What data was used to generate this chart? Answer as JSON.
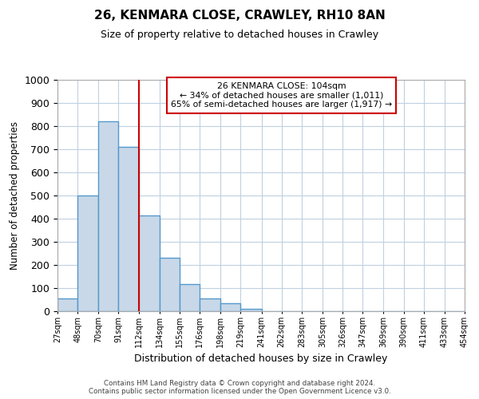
{
  "title": "26, KENMARA CLOSE, CRAWLEY, RH10 8AN",
  "subtitle": "Size of property relative to detached houses in Crawley",
  "xlabel": "Distribution of detached houses by size in Crawley",
  "ylabel": "Number of detached properties",
  "bin_edges": [
    27,
    48,
    70,
    91,
    112,
    134,
    155,
    176,
    198,
    219,
    241,
    262,
    283,
    305,
    326,
    347,
    369,
    390,
    411,
    433,
    454
  ],
  "bin_counts": [
    55,
    500,
    820,
    710,
    415,
    230,
    118,
    55,
    35,
    12,
    0,
    0,
    0,
    0,
    0,
    0,
    0,
    0,
    0,
    0
  ],
  "bar_facecolor": "#c8d8e8",
  "bar_edgecolor": "#5599cc",
  "bar_linewidth": 1.0,
  "vline_x": 112,
  "vline_color": "#cc0000",
  "vline_linewidth": 1.5,
  "ylim": [
    0,
    1000
  ],
  "yticks": [
    0,
    100,
    200,
    300,
    400,
    500,
    600,
    700,
    800,
    900,
    1000
  ],
  "grid_color": "#c0d0e0",
  "grid_linewidth": 0.8,
  "annotation_title": "26 KENMARA CLOSE: 104sqm",
  "annotation_line1": "← 34% of detached houses are smaller (1,011)",
  "annotation_line2": "65% of semi-detached houses are larger (1,917) →",
  "annotation_box_edgecolor": "#cc0000",
  "annotation_box_facecolor": "#ffffff",
  "footer_line1": "Contains HM Land Registry data © Crown copyright and database right 2024.",
  "footer_line2": "Contains public sector information licensed under the Open Government Licence v3.0.",
  "background_color": "#ffffff",
  "tick_labels": [
    "27sqm",
    "48sqm",
    "70sqm",
    "91sqm",
    "112sqm",
    "134sqm",
    "155sqm",
    "176sqm",
    "198sqm",
    "219sqm",
    "241sqm",
    "262sqm",
    "283sqm",
    "305sqm",
    "326sqm",
    "347sqm",
    "369sqm",
    "390sqm",
    "411sqm",
    "433sqm",
    "454sqm"
  ]
}
